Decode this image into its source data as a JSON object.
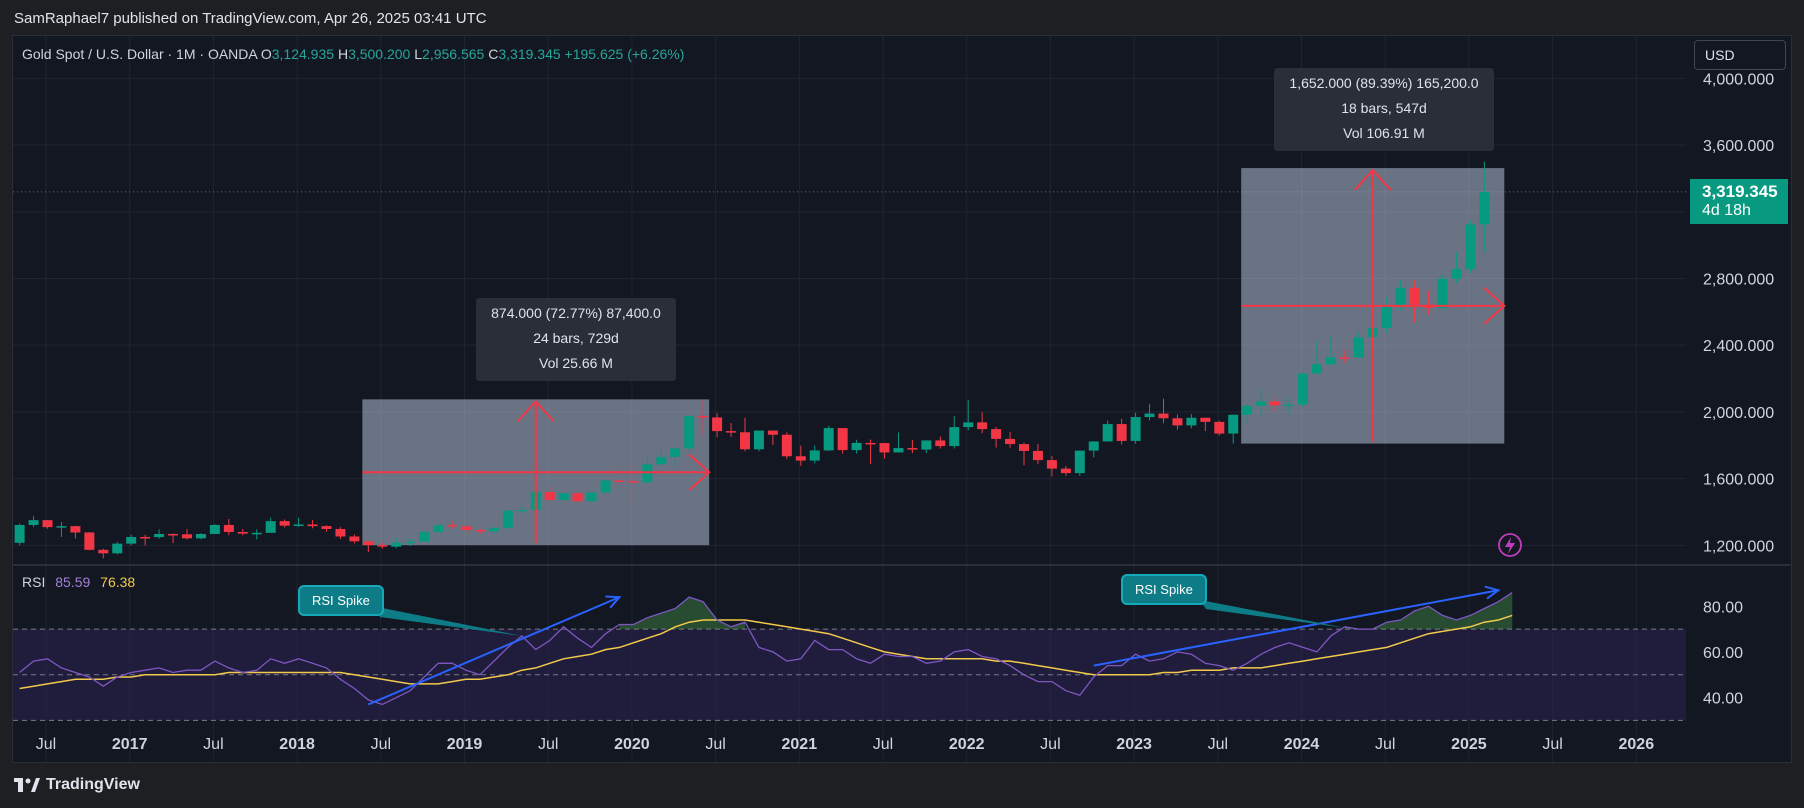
{
  "header": {
    "published": "SamRaphael7 published on TradingView.com, Apr 26, 2025 03:41 UTC"
  },
  "brand": {
    "name": "TradingView"
  },
  "legend": {
    "symbol": "Gold Spot / U.S. Dollar · 1M · OANDA",
    "open_label": "O",
    "open": "3,124.935",
    "high_label": "H",
    "high": "3,500.200",
    "low_label": "L",
    "low": "2,956.565",
    "close_label": "C",
    "close": "3,319.345",
    "change": "+195.625 (+6.26%)"
  },
  "currency": "USD",
  "price_tag": {
    "price": "3,319.345",
    "countdown": "4d 18h"
  },
  "rsi_legend": {
    "label": "RSI",
    "rsi": "85.59",
    "ma": "76.38"
  },
  "measures": [
    {
      "line1": "874.000 (72.77%) 87,400.0",
      "line2": "24 bars, 729d",
      "line3": "Vol 25.66 M"
    },
    {
      "line1": "1,652.000 (89.39%) 165,200.0",
      "line2": "18 bars, 547d",
      "line3": "Vol 106.91 M"
    }
  ],
  "callouts": [
    "RSI Spike",
    "RSI Spike"
  ],
  "colors": {
    "bull": "#089981",
    "bear": "#f23645",
    "bg": "#131722",
    "measure": "#f23645",
    "rsi": "#7e57c2",
    "rsi_ma": "#f2c94c",
    "trendline": "#2962ff"
  },
  "chart_data": [
    {
      "type": "candlestick",
      "title": "Gold Spot / U.S. Dollar · 1M · OANDA",
      "x_tick_labels": [
        "Jul",
        "2017",
        "Jul",
        "2018",
        "Jul",
        "2019",
        "Jul",
        "2020",
        "Jul",
        "2021",
        "Jul",
        "2022",
        "Jul",
        "2023",
        "Jul",
        "2024",
        "Jul",
        "2025",
        "Jul",
        "2026"
      ],
      "y_tick_labels": [
        "1,200.000",
        "1,600.000",
        "2,000.000",
        "2,400.000",
        "2,800.000",
        "3,600.000",
        "4,000.000"
      ],
      "y_ticks": [
        1200,
        1600,
        2000,
        2400,
        2800,
        3600,
        4000
      ],
      "ylim": [
        1100,
        4050
      ],
      "x_start": "2016-06",
      "series": [
        {
          "name": "XAUUSD",
          "values": [
            {
              "o": 1215,
              "h": 1330,
              "c": 1322,
              "l": 1200
            },
            {
              "o": 1322,
              "h": 1375,
              "c": 1351,
              "l": 1310
            },
            {
              "o": 1351,
              "h": 1352,
              "c": 1309,
              "l": 1300
            },
            {
              "o": 1309,
              "h": 1340,
              "c": 1315,
              "l": 1250
            },
            {
              "o": 1315,
              "h": 1318,
              "c": 1277,
              "l": 1240
            },
            {
              "o": 1277,
              "h": 1280,
              "c": 1173,
              "l": 1170
            },
            {
              "o": 1173,
              "h": 1180,
              "c": 1152,
              "l": 1122
            },
            {
              "o": 1152,
              "h": 1220,
              "c": 1210,
              "l": 1146
            },
            {
              "o": 1210,
              "h": 1264,
              "c": 1250,
              "l": 1200
            },
            {
              "o": 1250,
              "h": 1263,
              "c": 1249,
              "l": 1198
            },
            {
              "o": 1249,
              "h": 1295,
              "c": 1268,
              "l": 1240
            },
            {
              "o": 1268,
              "h": 1270,
              "c": 1266,
              "l": 1214
            },
            {
              "o": 1266,
              "h": 1297,
              "c": 1242,
              "l": 1236
            },
            {
              "o": 1242,
              "h": 1272,
              "c": 1268,
              "l": 1236
            },
            {
              "o": 1268,
              "h": 1326,
              "c": 1322,
              "l": 1268
            },
            {
              "o": 1322,
              "h": 1358,
              "c": 1280,
              "l": 1260
            },
            {
              "o": 1280,
              "h": 1298,
              "c": 1270,
              "l": 1260
            },
            {
              "o": 1270,
              "h": 1296,
              "c": 1275,
              "l": 1236
            },
            {
              "o": 1275,
              "h": 1366,
              "c": 1345,
              "l": 1302
            },
            {
              "o": 1345,
              "h": 1355,
              "c": 1318,
              "l": 1307
            },
            {
              "o": 1318,
              "h": 1365,
              "c": 1325,
              "l": 1310
            },
            {
              "o": 1325,
              "h": 1352,
              "c": 1315,
              "l": 1302
            },
            {
              "o": 1315,
              "h": 1320,
              "c": 1298,
              "l": 1282
            },
            {
              "o": 1298,
              "h": 1309,
              "c": 1253,
              "l": 1238
            },
            {
              "o": 1253,
              "h": 1265,
              "c": 1224,
              "l": 1211
            },
            {
              "o": 1224,
              "h": 1214,
              "c": 1201,
              "l": 1160
            },
            {
              "o": 1201,
              "h": 1215,
              "c": 1192,
              "l": 1180
            },
            {
              "o": 1192,
              "h": 1243,
              "c": 1215,
              "l": 1182
            },
            {
              "o": 1215,
              "h": 1240,
              "c": 1222,
              "l": 1196
            },
            {
              "o": 1222,
              "h": 1287,
              "c": 1280,
              "l": 1221
            },
            {
              "o": 1280,
              "h": 1326,
              "c": 1321,
              "l": 1276
            },
            {
              "o": 1321,
              "h": 1346,
              "c": 1313,
              "l": 1300
            },
            {
              "o": 1313,
              "h": 1324,
              "c": 1292,
              "l": 1282
            },
            {
              "o": 1292,
              "h": 1302,
              "c": 1283,
              "l": 1266
            },
            {
              "o": 1283,
              "h": 1306,
              "c": 1305,
              "l": 1266
            },
            {
              "o": 1305,
              "h": 1348,
              "c": 1409,
              "l": 1283
            },
            {
              "o": 1409,
              "h": 1442,
              "c": 1413,
              "l": 1381
            },
            {
              "o": 1413,
              "h": 1555,
              "c": 1520,
              "l": 1400
            },
            {
              "o": 1520,
              "h": 1557,
              "c": 1472,
              "l": 1460
            },
            {
              "o": 1472,
              "h": 1516,
              "c": 1513,
              "l": 1459
            },
            {
              "o": 1513,
              "h": 1520,
              "c": 1464,
              "l": 1445
            },
            {
              "o": 1464,
              "h": 1521,
              "c": 1517,
              "l": 1459
            },
            {
              "o": 1517,
              "h": 1588,
              "c": 1589,
              "l": 1500
            },
            {
              "o": 1589,
              "h": 1689,
              "c": 1585,
              "l": 1550
            },
            {
              "o": 1585,
              "h": 1703,
              "c": 1577,
              "l": 1451
            },
            {
              "o": 1577,
              "h": 1748,
              "c": 1686,
              "l": 1567
            },
            {
              "o": 1686,
              "h": 1765,
              "c": 1730,
              "l": 1690
            },
            {
              "o": 1730,
              "h": 1790,
              "c": 1781,
              "l": 1670
            },
            {
              "o": 1781,
              "h": 1985,
              "c": 1975,
              "l": 1757
            },
            {
              "o": 1975,
              "h": 2075,
              "c": 1967,
              "l": 1863
            },
            {
              "o": 1967,
              "h": 1992,
              "c": 1885,
              "l": 1848
            },
            {
              "o": 1885,
              "h": 1933,
              "c": 1878,
              "l": 1850
            },
            {
              "o": 1878,
              "h": 1965,
              "c": 1776,
              "l": 1764
            },
            {
              "o": 1776,
              "h": 1875,
              "c": 1888,
              "l": 1764
            },
            {
              "o": 1888,
              "h": 1871,
              "c": 1863,
              "l": 1802
            },
            {
              "o": 1863,
              "h": 1877,
              "c": 1734,
              "l": 1717
            },
            {
              "o": 1734,
              "h": 1798,
              "c": 1708,
              "l": 1677
            },
            {
              "o": 1708,
              "h": 1798,
              "c": 1769,
              "l": 1690
            },
            {
              "o": 1769,
              "h": 1916,
              "c": 1903,
              "l": 1766
            },
            {
              "o": 1903,
              "h": 1900,
              "c": 1771,
              "l": 1750
            },
            {
              "o": 1771,
              "h": 1833,
              "c": 1814,
              "l": 1750
            },
            {
              "o": 1814,
              "h": 1834,
              "c": 1813,
              "l": 1687
            },
            {
              "o": 1813,
              "h": 1814,
              "c": 1757,
              "l": 1720
            },
            {
              "o": 1757,
              "h": 1877,
              "c": 1783,
              "l": 1758
            },
            {
              "o": 1783,
              "h": 1832,
              "c": 1774,
              "l": 1753
            },
            {
              "o": 1774,
              "h": 1830,
              "c": 1829,
              "l": 1753
            },
            {
              "o": 1829,
              "h": 1853,
              "c": 1795,
              "l": 1780
            },
            {
              "o": 1795,
              "h": 1975,
              "c": 1909,
              "l": 1781
            },
            {
              "o": 1909,
              "h": 2070,
              "c": 1937,
              "l": 1890
            },
            {
              "o": 1937,
              "h": 1998,
              "c": 1897,
              "l": 1872
            },
            {
              "o": 1897,
              "h": 1910,
              "c": 1838,
              "l": 1786
            },
            {
              "o": 1838,
              "h": 1880,
              "c": 1807,
              "l": 1785
            },
            {
              "o": 1807,
              "h": 1815,
              "c": 1766,
              "l": 1680
            },
            {
              "o": 1766,
              "h": 1808,
              "c": 1711,
              "l": 1688
            },
            {
              "o": 1711,
              "h": 1735,
              "c": 1660,
              "l": 1614
            },
            {
              "o": 1660,
              "h": 1675,
              "c": 1633,
              "l": 1617
            },
            {
              "o": 1633,
              "h": 1700,
              "c": 1768,
              "l": 1616
            },
            {
              "o": 1768,
              "h": 1824,
              "c": 1823,
              "l": 1727
            },
            {
              "o": 1823,
              "h": 1949,
              "c": 1927,
              "l": 1823
            },
            {
              "o": 1927,
              "h": 1959,
              "c": 1826,
              "l": 1804
            },
            {
              "o": 1826,
              "h": 1995,
              "c": 1969,
              "l": 1809
            },
            {
              "o": 1969,
              "h": 2048,
              "c": 1990,
              "l": 1949
            },
            {
              "o": 1990,
              "h": 2079,
              "c": 1962,
              "l": 1932
            },
            {
              "o": 1962,
              "h": 1985,
              "c": 1919,
              "l": 1893
            },
            {
              "o": 1919,
              "h": 1987,
              "c": 1965,
              "l": 1902
            },
            {
              "o": 1965,
              "h": 1950,
              "c": 1940,
              "l": 1885
            },
            {
              "o": 1940,
              "h": 1948,
              "c": 1870,
              "l": 1858
            },
            {
              "o": 1870,
              "h": 1885,
              "c": 1983,
              "l": 1810
            },
            {
              "o": 1983,
              "h": 2052,
              "c": 2036,
              "l": 1931
            },
            {
              "o": 2036,
              "h": 2135,
              "c": 2063,
              "l": 1973
            },
            {
              "o": 2063,
              "h": 2087,
              "c": 2039,
              "l": 2001
            },
            {
              "o": 2039,
              "h": 2088,
              "c": 2044,
              "l": 1984
            },
            {
              "o": 2044,
              "h": 2240,
              "c": 2230,
              "l": 2030
            },
            {
              "o": 2230,
              "h": 2431,
              "c": 2286,
              "l": 2228
            },
            {
              "o": 2286,
              "h": 2450,
              "c": 2327,
              "l": 2277
            },
            {
              "o": 2327,
              "h": 2368,
              "c": 2326,
              "l": 2293
            },
            {
              "o": 2326,
              "h": 2483,
              "c": 2447,
              "l": 2353
            },
            {
              "o": 2447,
              "h": 2531,
              "c": 2503,
              "l": 2364
            },
            {
              "o": 2503,
              "h": 2685,
              "c": 2634,
              "l": 2472
            },
            {
              "o": 2634,
              "h": 2790,
              "c": 2744,
              "l": 2603
            },
            {
              "o": 2744,
              "h": 2790,
              "c": 2643,
              "l": 2537
            },
            {
              "o": 2643,
              "h": 2726,
              "c": 2624,
              "l": 2583
            },
            {
              "o": 2624,
              "h": 2817,
              "c": 2798,
              "l": 2614
            },
            {
              "o": 2798,
              "h": 2956,
              "c": 2857,
              "l": 2772
            },
            {
              "o": 2857,
              "h": 3148,
              "c": 3124,
              "l": 2832
            },
            {
              "o": 3124,
              "h": 3500,
              "c": 3319,
              "l": 2956
            }
          ]
        }
      ]
    },
    {
      "type": "line",
      "title": "RSI",
      "y_tick_labels": [
        "40.00",
        "60.00",
        "80.00"
      ],
      "y_ticks": [
        40,
        60,
        80
      ],
      "ylim": [
        28,
        95
      ],
      "bands": [
        30,
        70
      ],
      "series": [
        {
          "name": "RSI",
          "values": [
            51,
            56,
            57,
            53,
            51,
            49,
            45,
            49,
            51,
            52,
            53,
            51,
            52,
            52,
            56,
            53,
            51,
            52,
            57,
            55,
            57,
            55,
            53,
            48,
            44,
            39,
            37,
            40,
            43,
            49,
            55,
            55,
            52,
            50,
            56,
            62,
            67,
            61,
            65,
            71,
            66,
            62,
            68,
            72,
            72,
            75,
            77,
            79,
            84,
            82,
            74,
            71,
            73,
            62,
            60,
            56,
            57,
            65,
            61,
            61,
            57,
            55,
            59,
            58,
            58,
            55,
            56,
            60,
            61,
            58,
            57,
            54,
            50,
            47,
            47,
            43,
            41,
            49,
            54,
            54,
            59,
            56,
            57,
            60,
            59,
            55,
            54,
            52,
            55,
            59,
            62,
            64,
            62,
            60,
            67,
            71,
            70,
            70,
            73,
            74,
            78,
            80,
            76,
            74,
            76,
            79,
            82,
            86
          ]
        },
        {
          "name": "RSI MA",
          "values": [
            44,
            45,
            46,
            47,
            48,
            48,
            48,
            49,
            49,
            50,
            50,
            50,
            50,
            50,
            50,
            51,
            51,
            51,
            51,
            51,
            51,
            51,
            51,
            51,
            50,
            49,
            48,
            47,
            46,
            46,
            46,
            47,
            48,
            48,
            49,
            50,
            52,
            53,
            55,
            57,
            58,
            59,
            61,
            62,
            64,
            66,
            68,
            71,
            73,
            74,
            74,
            74,
            74,
            73,
            72,
            71,
            70,
            69,
            68,
            66,
            64,
            62,
            60,
            59,
            58,
            57,
            57,
            57,
            57,
            57,
            56,
            56,
            55,
            54,
            53,
            52,
            51,
            50,
            50,
            50,
            50,
            50,
            51,
            51,
            52,
            52,
            52,
            53,
            53,
            53,
            54,
            55,
            56,
            57,
            58,
            59,
            60,
            61,
            62,
            64,
            66,
            68,
            69,
            70,
            71,
            73,
            74,
            76
          ]
        }
      ]
    }
  ]
}
